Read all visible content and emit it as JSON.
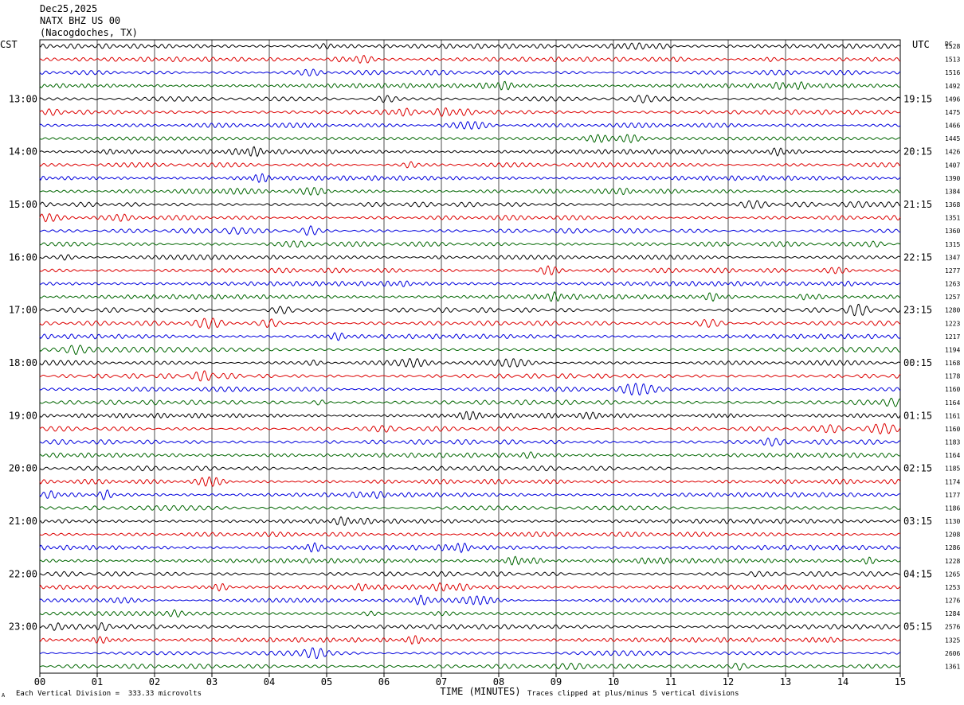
{
  "header": {
    "date": "Dec25,2025",
    "station": "NATX BHZ US 00",
    "location": "(Nacogdoches, TX)"
  },
  "left_zone_label": "CST",
  "right_zone_label": "UTC",
  "right_col_label": "DC",
  "footer": {
    "scale_note": "Each Vertical Division =  333.33 microvolts",
    "xlabel": "TIME (MINUTES)",
    "clip_note": "Traces clipped at plus/minus 5 vertical divisions",
    "corner_mark": "A"
  },
  "colors": {
    "trace_cycle": [
      "#000000",
      "#dd0000",
      "#0000dd",
      "#006600"
    ],
    "grid": "#000000",
    "background": "#ffffff"
  },
  "chart_data": {
    "type": "line",
    "subtype": "helicorder",
    "title": "NATX BHZ US 00",
    "xlabel": "TIME (MINUTES)",
    "xlim": [
      0,
      15
    ],
    "x_ticks": [
      "00",
      "01",
      "02",
      "03",
      "04",
      "05",
      "06",
      "07",
      "08",
      "09",
      "10",
      "11",
      "12",
      "13",
      "14",
      "15"
    ],
    "row_count": 48,
    "minutes_per_row": 15,
    "left_hour_labels": [
      "13:00",
      "14:00",
      "15:00",
      "16:00",
      "17:00",
      "18:00",
      "19:00",
      "20:00",
      "21:00",
      "22:00",
      "23:00"
    ],
    "right_hour_labels": [
      "19:15",
      "20:15",
      "21:15",
      "22:15",
      "23:15",
      "00:15",
      "01:15",
      "02:15",
      "03:15",
      "04:15",
      "05:15"
    ],
    "hour_label_first_row": 4,
    "hour_label_every_rows": 4,
    "dc_offsets": [
      "1528",
      "1513",
      "1516",
      "1492",
      "1496",
      "1475",
      "1466",
      "1445",
      "1426",
      "1407",
      "1390",
      "1384",
      "1368",
      "1351",
      "1360",
      "1315",
      "1347",
      "1277",
      "1263",
      "1257",
      "1280",
      "1223",
      "1217",
      "1194",
      "1168",
      "1178",
      "1160",
      "1164",
      "1161",
      "1160",
      "1183",
      "1164",
      "1185",
      "1174",
      "1177",
      "1186",
      "1130",
      "1208",
      "1286",
      "1228",
      "1265",
      "1253",
      "1276",
      "1284",
      "2576",
      "1325",
      "2606",
      "1361"
    ]
  }
}
